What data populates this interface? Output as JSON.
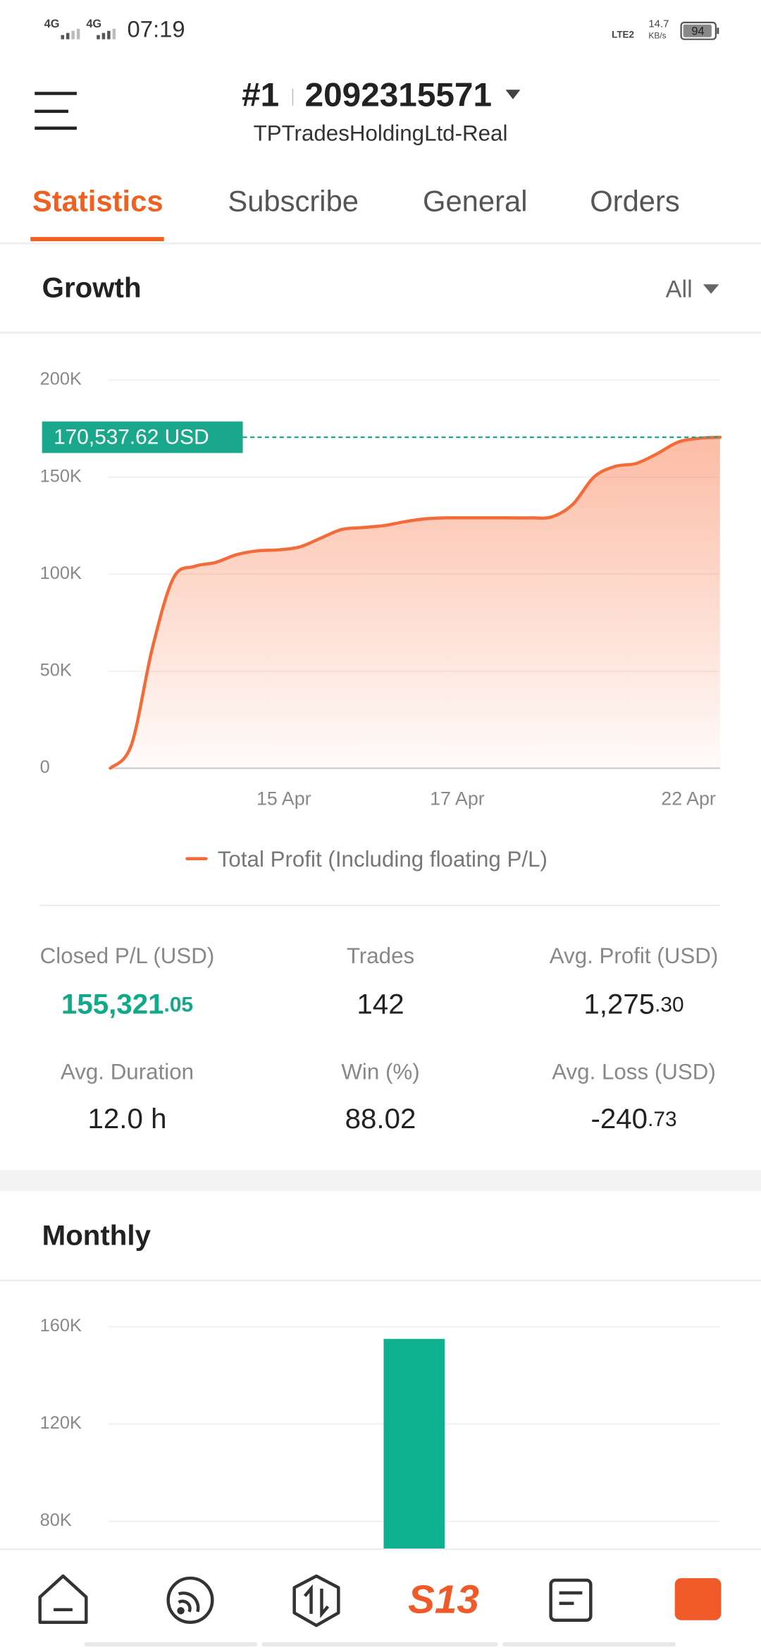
{
  "status_bar": {
    "net1": "4G",
    "net2": "4G",
    "time": "07:19",
    "lte": "LTE2",
    "speed": "14.7",
    "speed_unit": "KB/s",
    "battery": "94"
  },
  "header": {
    "rank": "#1",
    "account": "2092315571",
    "server": "TPTradesHoldingLtd-Real"
  },
  "tabs": [
    "Statistics",
    "Subscribe",
    "General",
    "Orders"
  ],
  "growth_filter": "All",
  "chart_data": [
    {
      "type": "line",
      "title": "Growth",
      "x": [
        0,
        1,
        2,
        3,
        4,
        5,
        6,
        7,
        8,
        9,
        10,
        11,
        12,
        13,
        14,
        15,
        16,
        17,
        18,
        19,
        20,
        21,
        22,
        23,
        24,
        25,
        26,
        27,
        28,
        29
      ],
      "series": [
        {
          "name": "Total Profit (Including floating P/L)",
          "color": "#f26b38",
          "values": [
            0,
            12000,
            62000,
            98000,
            104000,
            106000,
            110000,
            112000,
            112500,
            114000,
            118500,
            123000,
            124000,
            125000,
            127000,
            128500,
            129000,
            129000,
            129000,
            129000,
            129000,
            129500,
            136000,
            150000,
            155500,
            157000,
            162000,
            168000,
            170000,
            170537.62
          ]
        }
      ],
      "xlim": [
        0,
        29
      ],
      "xticks": [
        {
          "value": 8.25,
          "label": "15 Apr"
        },
        {
          "value": 16.5,
          "label": "17 Apr"
        },
        {
          "value": 27.5,
          "label": "22 Apr"
        }
      ],
      "ylim": [
        0,
        200000
      ],
      "yticks": [
        {
          "value": 0,
          "label": "0"
        },
        {
          "value": 50000,
          "label": "50K"
        },
        {
          "value": 100000,
          "label": "100K"
        },
        {
          "value": 150000,
          "label": "150K"
        },
        {
          "value": 200000,
          "label": "200K"
        }
      ],
      "grid": true,
      "annotation": {
        "value": 170537.62,
        "label": "170,537.62 USD",
        "color": "#1aa88c"
      }
    },
    {
      "type": "bar",
      "title": "Monthly",
      "categories": [
        null
      ],
      "values": [
        155000
      ],
      "color": "#0fb08f",
      "ylim": [
        0,
        160000
      ],
      "yticks": [
        {
          "value": 80000,
          "label": "80K"
        },
        {
          "value": 120000,
          "label": "120K"
        },
        {
          "value": 160000,
          "label": "160K"
        }
      ],
      "grid": true
    }
  ],
  "stats": [
    {
      "label": "Closed P/L (USD)",
      "value": "155,321",
      "decimals": ".05"
    },
    {
      "label": "Trades",
      "value": "142"
    },
    {
      "label": "Avg. Profit (USD)",
      "value": "1,275",
      "decimals": ".30"
    },
    {
      "label": "Avg. Duration",
      "value": "12.0 h"
    },
    {
      "label": "Win (%)",
      "value": "88.02"
    },
    {
      "label": "Avg. Loss (USD)",
      "value": "-240",
      "decimals": ".73"
    }
  ],
  "nav": {
    "logo": "S13"
  }
}
